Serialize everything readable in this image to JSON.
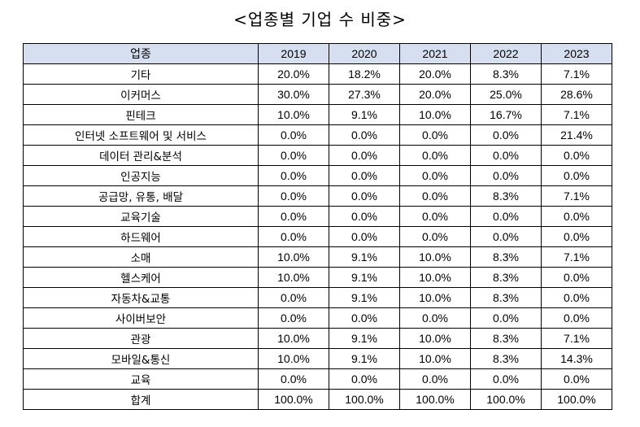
{
  "title": "<업종별 기업 수 비중>",
  "table": {
    "header": [
      "업종",
      "2019",
      "2020",
      "2021",
      "2022",
      "2023"
    ],
    "rows": [
      [
        "기타",
        "20.0%",
        "18.2%",
        "20.0%",
        "8.3%",
        "7.1%"
      ],
      [
        "이커머스",
        "30.0%",
        "27.3%",
        "20.0%",
        "25.0%",
        "28.6%"
      ],
      [
        "핀테크",
        "10.0%",
        "9.1%",
        "10.0%",
        "16.7%",
        "7.1%"
      ],
      [
        "인터넷 소프트웨어 및 서비스",
        "0.0%",
        "0.0%",
        "0.0%",
        "0.0%",
        "21.4%"
      ],
      [
        "데이터 관리&분석",
        "0.0%",
        "0.0%",
        "0.0%",
        "0.0%",
        "0.0%"
      ],
      [
        "인공지능",
        "0.0%",
        "0.0%",
        "0.0%",
        "0.0%",
        "0.0%"
      ],
      [
        "공급망, 유통, 배달",
        "0.0%",
        "0.0%",
        "0.0%",
        "8.3%",
        "7.1%"
      ],
      [
        "교육기술",
        "0.0%",
        "0.0%",
        "0.0%",
        "0.0%",
        "0.0%"
      ],
      [
        "하드웨어",
        "0.0%",
        "0.0%",
        "0.0%",
        "0.0%",
        "0.0%"
      ],
      [
        "소매",
        "10.0%",
        "9.1%",
        "10.0%",
        "8.3%",
        "7.1%"
      ],
      [
        "헬스케어",
        "10.0%",
        "9.1%",
        "10.0%",
        "8.3%",
        "0.0%"
      ],
      [
        "자동차&교통",
        "0.0%",
        "9.1%",
        "10.0%",
        "8.3%",
        "0.0%"
      ],
      [
        "사이버보안",
        "0.0%",
        "0.0%",
        "0.0%",
        "0.0%",
        "0.0%"
      ],
      [
        "관광",
        "10.0%",
        "9.1%",
        "10.0%",
        "8.3%",
        "7.1%"
      ],
      [
        "모바일&통신",
        "10.0%",
        "9.1%",
        "10.0%",
        "8.3%",
        "14.3%"
      ],
      [
        "교육",
        "0.0%",
        "0.0%",
        "0.0%",
        "0.0%",
        "0.0%"
      ],
      [
        "합계",
        "100.0%",
        "100.0%",
        "100.0%",
        "100.0%",
        "100.0%"
      ]
    ]
  }
}
